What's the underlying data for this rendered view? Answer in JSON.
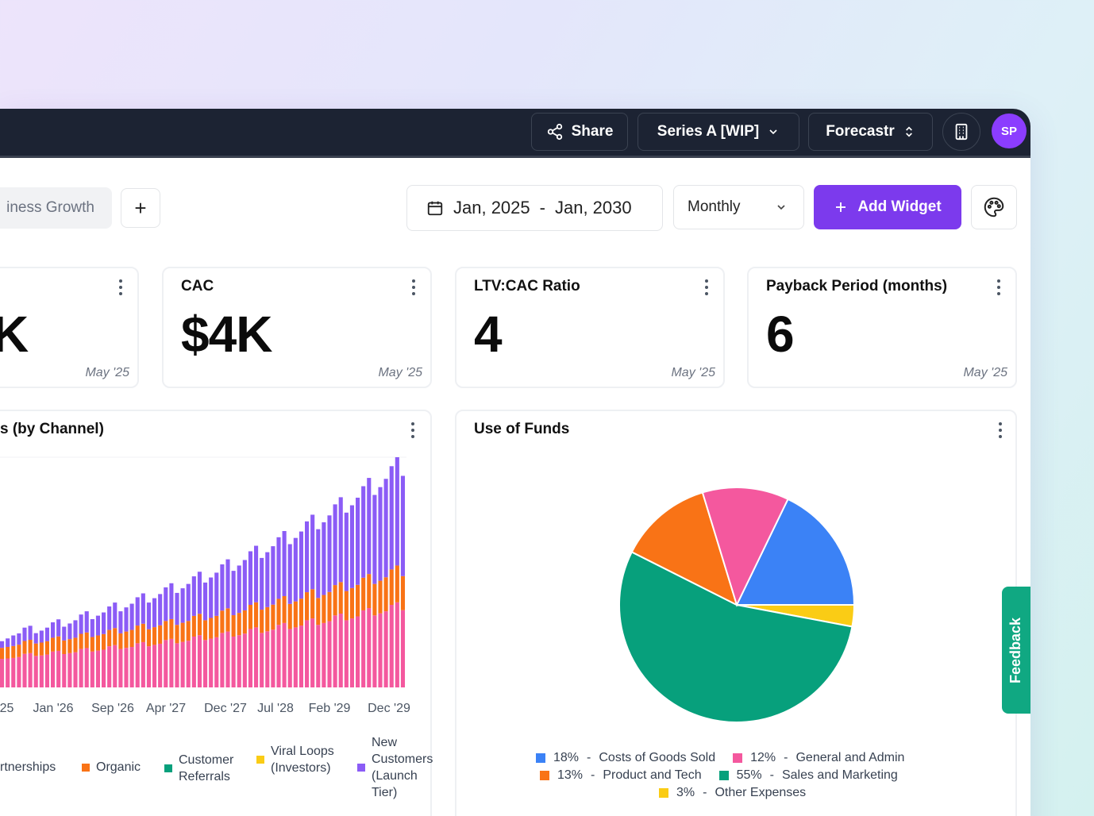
{
  "topbar": {
    "share_label": "Share",
    "model_label": "Series A [WIP]",
    "app_label": "Forecastr",
    "avatar_initials": "SP"
  },
  "toolbar": {
    "tab_label": "iness Growth",
    "add_tab": "+",
    "date_start": "Jan, 2025",
    "date_sep": "-",
    "date_end": "Jan, 2030",
    "period_select": "Monthly",
    "add_widget_label": "Add Widget"
  },
  "kpis": [
    {
      "title": "",
      "value": "K",
      "date": "May '25"
    },
    {
      "title": "CAC",
      "value": "$4K",
      "date": "May '25"
    },
    {
      "title": "LTV:CAC Ratio",
      "value": "4",
      "date": "May '25"
    },
    {
      "title": "Payback Period (months)",
      "value": "6",
      "date": "May '25"
    }
  ],
  "feedback_label": "Feedback",
  "colors": {
    "purple": "#8b5cf6",
    "orange": "#f97316",
    "pink": "#f4589e",
    "green": "#07a07c",
    "yellow": "#facc15",
    "blue": "#3b82f6",
    "accent": "#7c3aed"
  },
  "chart_data": [
    {
      "type": "bar",
      "stacked": true,
      "title": "s (by Channel)",
      "x_tick_labels": [
        "'25",
        "Jan '26",
        "Sep '26",
        "Apr '27",
        "Dec '27",
        "Jul '28",
        "Feb '29",
        "Dec '29"
      ],
      "series": [
        {
          "name": "rtnerships",
          "color": "#f4589e",
          "values": [
            12.4,
            12.6,
            12.8,
            13.2,
            14.6,
            14.9,
            13.7,
            13.9,
            14.3,
            15.6,
            15.9,
            14.5,
            14.9,
            15.3,
            16.7,
            17.1,
            15.6,
            16.0,
            16.4,
            17.9,
            18.4,
            16.7,
            17.2,
            17.6,
            19.2,
            19.7,
            17.9,
            18.5,
            19.0,
            20.6,
            21.1,
            19.2,
            19.8,
            20.3,
            22.1,
            22.7,
            20.6,
            21.2,
            21.8,
            23.7,
            24.3,
            22.1,
            22.7,
            23.4,
            25.4,
            26.1,
            23.7,
            24.4,
            25.1,
            27.2,
            28.0,
            25.4,
            26.1,
            26.9,
            29.2,
            30.0,
            27.2,
            28.0,
            28.8,
            31.3,
            32.1,
            29.2,
            30.0,
            30.9,
            33.5,
            34.5,
            31.3,
            32.2,
            33.1,
            35.9,
            37.0,
            33.6
          ]
        },
        {
          "name": "Organic",
          "color": "#f97316",
          "values": [
            4.8,
            5.0,
            5.2,
            5.4,
            5.6,
            5.8,
            5.4,
            5.6,
            5.8,
            6.0,
            6.3,
            5.9,
            6.1,
            6.3,
            6.6,
            6.8,
            6.3,
            6.6,
            6.8,
            7.1,
            7.4,
            6.8,
            7.1,
            7.4,
            7.7,
            8.0,
            7.4,
            7.7,
            8.0,
            8.3,
            8.6,
            8.0,
            8.3,
            8.6,
            9.0,
            9.3,
            8.6,
            9.0,
            9.3,
            9.7,
            10.1,
            9.3,
            9.7,
            10.1,
            10.5,
            10.9,
            10.1,
            10.5,
            10.9,
            11.3,
            11.7,
            10.9,
            11.3,
            11.7,
            12.2,
            12.7,
            11.7,
            12.2,
            12.7,
            13.2,
            13.7,
            12.7,
            13.2,
            13.7,
            14.2,
            14.8,
            13.7,
            14.2,
            14.8,
            15.4,
            16.0,
            14.8
          ]
        },
        {
          "name": "Customer Referrals",
          "color": "#07a07c",
          "values": [
            0,
            0,
            0,
            0,
            0,
            0,
            0,
            0,
            0,
            0,
            0,
            0,
            0,
            0,
            0,
            0,
            0,
            0,
            0,
            0,
            0,
            0,
            0,
            0,
            0,
            0,
            0,
            0,
            0,
            0,
            0,
            0,
            0,
            0,
            0,
            0,
            0,
            0,
            0,
            0,
            0,
            0,
            0,
            0,
            0,
            0,
            0,
            0,
            0,
            0,
            0,
            0,
            0,
            0,
            0,
            0,
            0,
            0,
            0,
            0,
            0,
            0,
            0,
            0,
            0,
            0,
            0,
            0,
            0,
            0,
            0,
            0
          ]
        },
        {
          "name": "Viral Loops (Investors)",
          "color": "#facc15",
          "values": [
            0,
            0,
            0,
            0,
            0,
            0,
            0,
            0,
            0,
            0,
            0,
            0,
            0,
            0,
            0,
            0,
            0,
            0,
            0,
            0,
            0,
            0,
            0,
            0,
            0,
            0,
            0,
            0,
            0,
            0,
            0,
            0,
            0,
            0,
            0,
            0,
            0,
            0,
            0,
            0,
            0,
            0,
            0,
            0,
            0,
            0,
            0,
            0,
            0,
            0,
            0,
            0,
            0,
            0,
            0,
            0,
            0,
            0,
            0,
            0,
            0,
            0,
            0,
            0,
            0,
            0,
            0,
            0,
            0,
            0,
            0,
            0
          ]
        },
        {
          "name": "New Customers (Launch Tier)",
          "color": "#8b5cf6",
          "values": [
            2.9,
            3.7,
            4.6,
            4.9,
            5.8,
            6.1,
            4.5,
            5.2,
            5.9,
            6.7,
            7.4,
            6.0,
            6.8,
            7.6,
            8.4,
            9.2,
            7.8,
            8.6,
            9.4,
            10.2,
            11.1,
            9.6,
            10.5,
            11.4,
            12.3,
            13.2,
            11.6,
            12.6,
            13.6,
            14.6,
            15.6,
            13.9,
            15.0,
            16.1,
            17.2,
            18.3,
            16.4,
            17.6,
            18.8,
            20.1,
            21.3,
            19.3,
            20.6,
            21.9,
            23.3,
            24.6,
            22.5,
            23.9,
            25.4,
            26.8,
            28.3,
            26.0,
            27.6,
            29.2,
            30.8,
            32.4,
            29.9,
            31.6,
            33.3,
            35.1,
            36.9,
            34.1,
            36.0,
            37.9,
            39.8,
            41.8,
            38.7,
            40.7,
            42.8,
            44.9,
            47.1,
            43.6
          ]
        }
      ]
    },
    {
      "type": "pie",
      "title": "Use of Funds",
      "slices": [
        {
          "label": "Costs of Goods Sold",
          "percent": 18,
          "percent_label": "18%",
          "color": "#3b82f6"
        },
        {
          "label": "Other Expenses",
          "percent": 3,
          "percent_label": "3%",
          "color": "#facc15"
        },
        {
          "label": "Sales and Marketing",
          "percent": 55,
          "percent_label": "55%",
          "color": "#07a07c"
        },
        {
          "label": "Product and Tech",
          "percent": 13,
          "percent_label": "13%",
          "color": "#f97316"
        },
        {
          "label": "General and Admin",
          "percent": 12,
          "percent_label": "12%",
          "color": "#f4589e"
        }
      ],
      "legend_order": [
        0,
        4,
        3,
        2,
        1
      ],
      "legend_sep": "-"
    }
  ]
}
